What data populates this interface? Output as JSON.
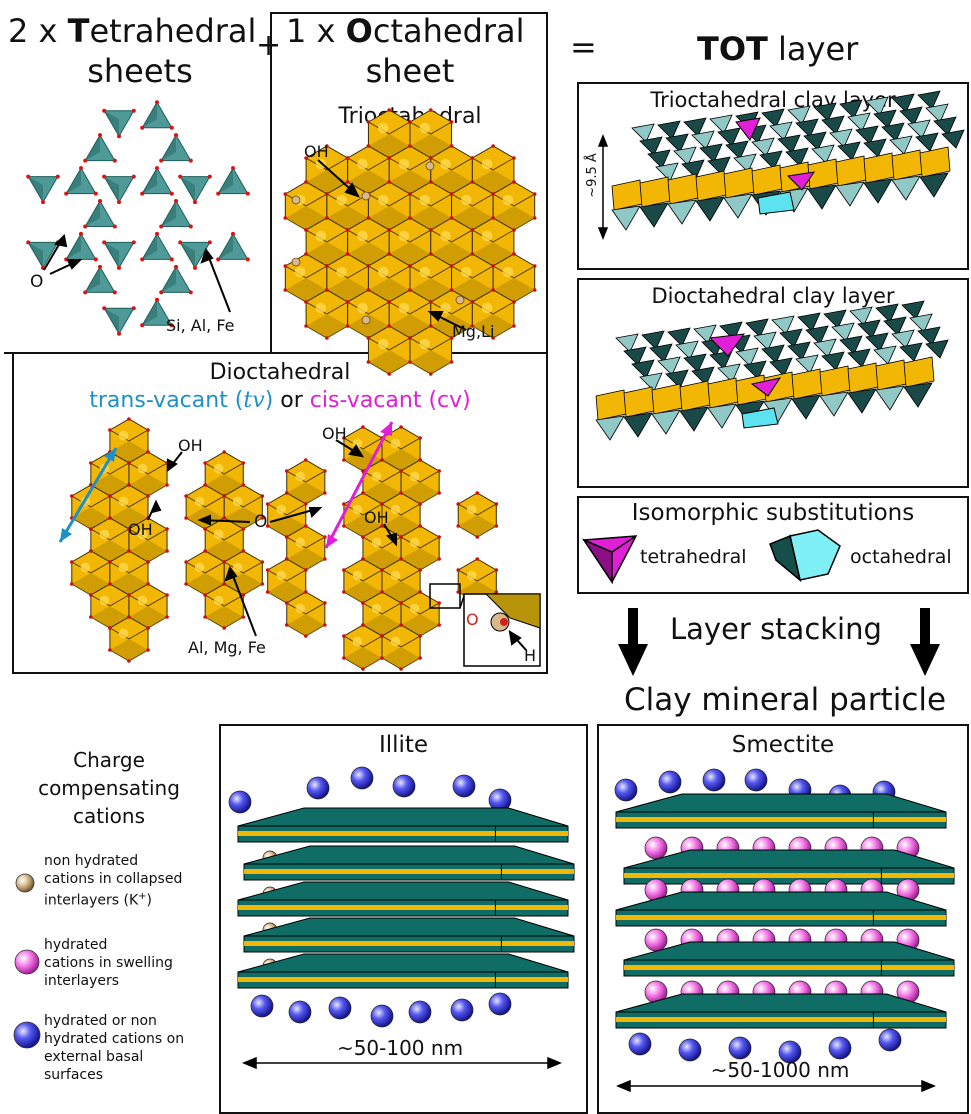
{
  "header": {
    "tet_prefix": "2 x ",
    "tet_bold": "T",
    "tet_rest": "etrahedral",
    "tet_line2": "sheets",
    "plus": "+",
    "oct_prefix": "1 x ",
    "oct_bold": "O",
    "oct_rest": "ctahedral",
    "oct_line2": "sheet",
    "equals": "=",
    "tot_bold": "TOT",
    "tot_rest": " layer"
  },
  "tetrahedral": {
    "label_o": "O",
    "label_si": "Si, Al, Fe"
  },
  "trioctahedral": {
    "title": "Trioctahedral",
    "label_oh": "OH",
    "label_mg": "Mg,Li"
  },
  "dioctahedral": {
    "title": "Dioctahedral",
    "trans_text": "trans-vacant (",
    "trans_italic": "tv",
    "trans_close": ")",
    "or_text": " or ",
    "cis_text": "cis-vacant (cv)",
    "labels": {
      "oh1": "OH",
      "oh2": "OH",
      "o": "O",
      "oh3": "OH",
      "oh4": "OH",
      "al": "Al, Mg, Fe",
      "o_red": "O",
      "h": "H"
    }
  },
  "tot_panel": {
    "tri_title": "Trioctahedral clay layer",
    "thickness": "~9.5 Å",
    "di_title": "Dioctahedral clay layer"
  },
  "isomorphic": {
    "title": "Isomorphic substitutions",
    "tet": "tetrahedral",
    "oct": "octahedral"
  },
  "stacking": {
    "label": "Layer stacking",
    "particle": "Clay mineral particle"
  },
  "legend": {
    "title1": "Charge",
    "title2": "compensating",
    "title3": "cations",
    "items": [
      {
        "l1": "non hydrated",
        "l2": "cations in collapsed",
        "l3": "interlayers (K",
        "sup": "+",
        "close": ")"
      },
      {
        "l1": "hydrated",
        "l2": "cations in swelling",
        "l3": "interlayers"
      },
      {
        "l1": "hydrated or non",
        "l2": "hydrated cations on",
        "l3": "external basal",
        "l4": "surfaces"
      }
    ]
  },
  "illite": {
    "title": "Illite",
    "scale": "~50-100 nm"
  },
  "smectite": {
    "title": "Smectite",
    "scale": "~50-1000 nm"
  },
  "colors": {
    "teal": "#4f9a98",
    "teal_dark": "#1f5f5c",
    "gold": "#f2b705",
    "gold_dark": "#b58a00",
    "cyan": "#1e90c8",
    "magenta": "#e01fd6",
    "slab": "#0f6d66",
    "blue": "#3d3fe0",
    "pink": "#f57ae8",
    "tan": "#d9b98c"
  }
}
